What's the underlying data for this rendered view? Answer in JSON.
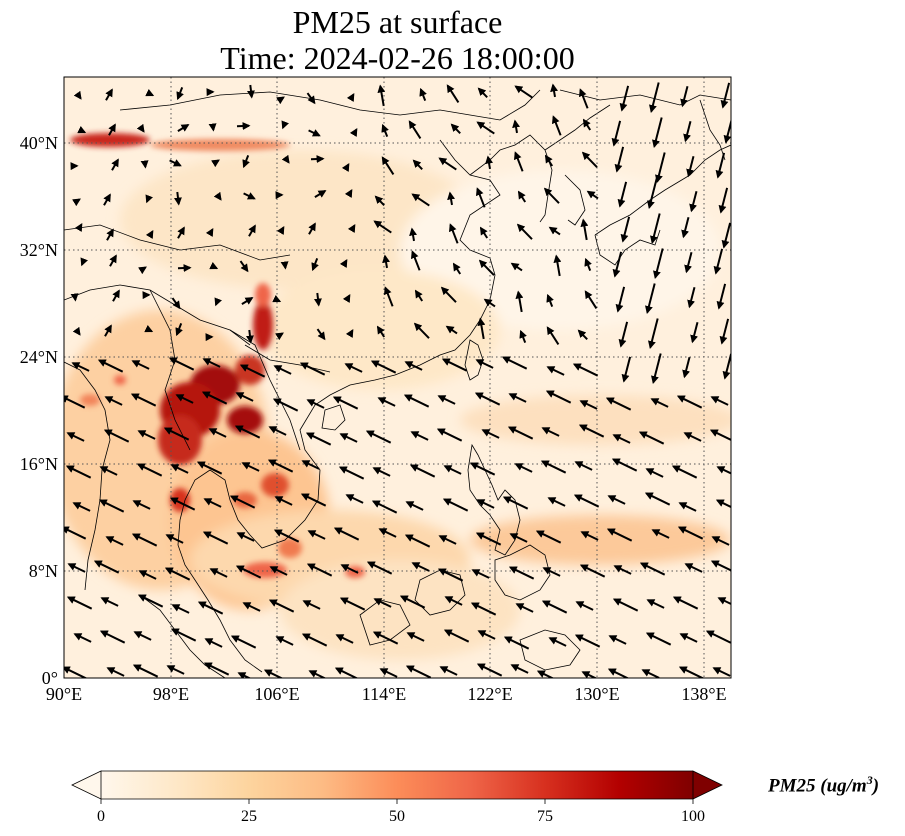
{
  "title": {
    "line1": "PM25 at surface",
    "line2": "Time: 2024-02-26 18:00:00"
  },
  "map": {
    "lon_range": [
      90,
      140
    ],
    "lat_range": [
      0,
      45
    ],
    "lon_ticks": [
      "90°E",
      "98°E",
      "106°E",
      "114°E",
      "122°E",
      "130°E",
      "138°E"
    ],
    "lat_ticks": [
      "0°",
      "8°N",
      "16°N",
      "24°N",
      "32°N",
      "40°N"
    ],
    "gridlines": "dotted",
    "coastlines": true,
    "wind_vectors": true
  },
  "colorbar": {
    "label_main": "PM25 (ug/m",
    "label_sup": "3",
    "label_close": ")",
    "ticks": [
      "0",
      "25",
      "50",
      "75",
      "100"
    ],
    "range": [
      0,
      100
    ],
    "colormap": "OrRd",
    "extend": "both",
    "colors": [
      "#fff7ec",
      "#fee8c8",
      "#fdd49e",
      "#fdbb84",
      "#fc8d59",
      "#ef6548",
      "#d7301f",
      "#b30000",
      "#7f0000"
    ]
  }
}
